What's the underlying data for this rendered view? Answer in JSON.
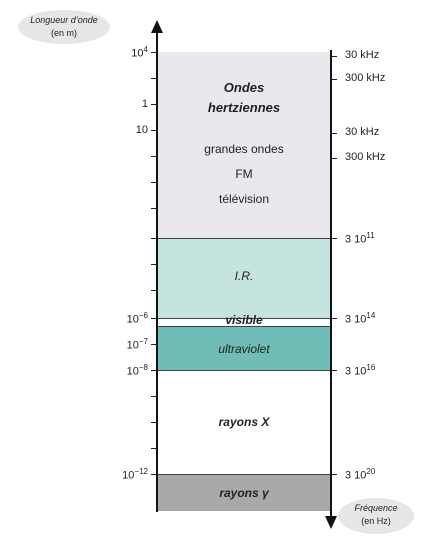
{
  "labels": {
    "wavelength": "Longueur d’onde",
    "wavelength_unit": "(en m)",
    "frequency": "Fréquence",
    "frequency_unit": "(en Hz)"
  },
  "bands": {
    "radio_title1": "Ondes",
    "radio_title2": "hertziennes",
    "radio_sub1": "grandes ondes",
    "radio_sub2": "FM",
    "radio_sub3": "télévision",
    "ir": "I.R.",
    "visible": "visible",
    "uv": "ultraviolet",
    "xray": "rayons X",
    "gamma": "rayons γ"
  },
  "left_ticks": {
    "w1_base": "10",
    "w1_exp": "4",
    "w2": "1",
    "w3": "10",
    "w4_base": "10",
    "w4_exp": "−6",
    "w5_base": "10",
    "w5_exp": "−7",
    "w6_base": "10",
    "w6_exp": "−8",
    "w7_base": "10",
    "w7_exp": "−12"
  },
  "right_ticks": {
    "f1": "30 kHz",
    "f2": "300 kHz",
    "f3": "30 kHz",
    "f4": "300 kHz",
    "f5_base": "3 10",
    "f5_exp": "11",
    "f6_base": "3 10",
    "f6_exp": "14",
    "f7_base": "3 10",
    "f7_exp": "16",
    "f8_base": "3 10",
    "f8_exp": "20"
  },
  "colors": {
    "radio": "#e9e9ed",
    "ir": "#c5e3df",
    "uv": "#6fbdb6",
    "xray": "#ffffff",
    "gamma": "#a9a9ab",
    "bubble": "#e6e6e6"
  }
}
